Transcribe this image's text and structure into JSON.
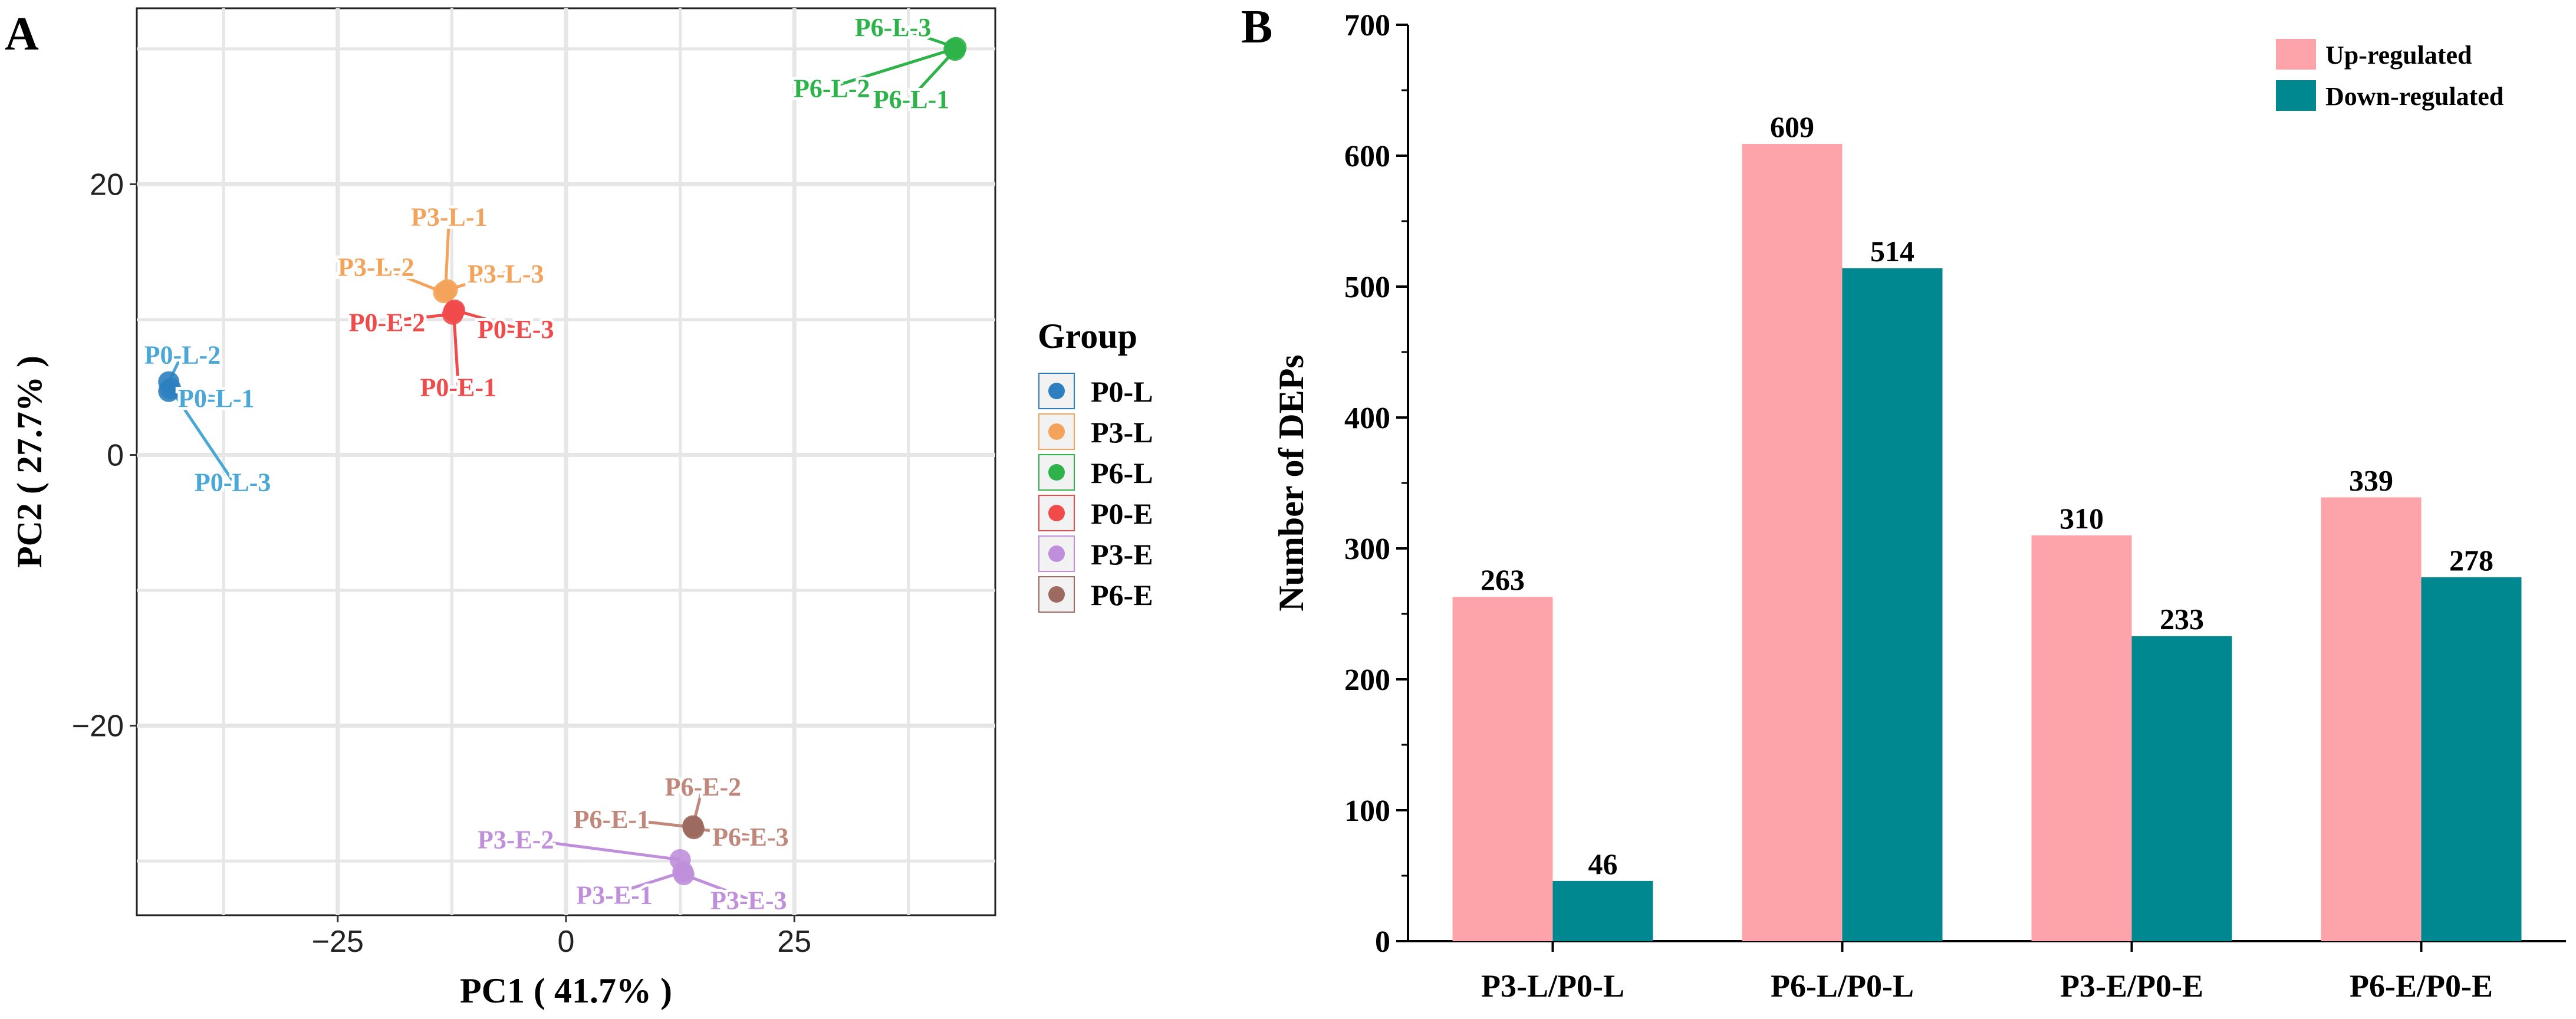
{
  "chart_data": [
    {
      "panel": "A",
      "type": "scatter",
      "xlabel": "PC1 ( 41.7% )",
      "ylabel": "PC2 ( 27.7% )",
      "xlim": [
        -47,
        47
      ],
      "ylim": [
        -34,
        33
      ],
      "xticks": [
        -25,
        0,
        25
      ],
      "yticks": [
        -20,
        0,
        20
      ],
      "xtick_labels": [
        "−25",
        "0",
        "25"
      ],
      "ytick_labels": [
        "−20",
        "0",
        "20"
      ],
      "grid": true,
      "legend": {
        "title": "Group",
        "entries": [
          {
            "name": "P0-L",
            "color": "#2e7fbf"
          },
          {
            "name": "P3-L",
            "color": "#f4a35a"
          },
          {
            "name": "P6-L",
            "color": "#2db34a"
          },
          {
            "name": "P0-E",
            "color": "#f04a4a"
          },
          {
            "name": "P3-E",
            "color": "#c08fdc"
          },
          {
            "name": "P6-E",
            "color": "#9c6a5e"
          }
        ]
      },
      "series": [
        {
          "name": "P0-L",
          "color": "#2e7fbf",
          "label_color": "#4aa8d8",
          "points": [
            {
              "label": "P0-L-1",
              "x": -43.5,
              "y": 4.7,
              "lx": -38.3,
              "ly": 4.2
            },
            {
              "label": "P0-L-2",
              "x": -43.5,
              "y": 5.4,
              "lx": -42.0,
              "ly": 7.4
            },
            {
              "label": "P0-L-3",
              "x": -43.3,
              "y": 4.9,
              "lx": -36.5,
              "ly": -2.0
            }
          ]
        },
        {
          "name": "P3-L",
          "color": "#f4a35a",
          "label_color": "#f4a35a",
          "points": [
            {
              "label": "P3-L-1",
              "x": -13.2,
              "y": 12.1,
              "lx": -12.8,
              "ly": 17.6
            },
            {
              "label": "P3-L-2",
              "x": -13.4,
              "y": 12.0,
              "lx": -20.8,
              "ly": 13.9
            },
            {
              "label": "P3-L-3",
              "x": -13.0,
              "y": 12.2,
              "lx": -6.6,
              "ly": 13.4
            }
          ]
        },
        {
          "name": "P6-L",
          "color": "#2db34a",
          "label_color": "#2db34a",
          "points": [
            {
              "label": "P6-L-1",
              "x": 42.6,
              "y": 29.9,
              "lx": 37.8,
              "ly": 26.3
            },
            {
              "label": "P6-L-2",
              "x": 42.5,
              "y": 30.0,
              "lx": 29.1,
              "ly": 27.1
            },
            {
              "label": "P6-L-3",
              "x": 42.7,
              "y": 30.1,
              "lx": 35.8,
              "ly": 31.6
            }
          ]
        },
        {
          "name": "P0-E",
          "color": "#f04a4a",
          "label_color": "#f04a4a",
          "points": [
            {
              "label": "P0-E-1",
              "x": -12.3,
              "y": 10.6,
              "lx": -11.8,
              "ly": 5.0
            },
            {
              "label": "P0-E-2",
              "x": -12.4,
              "y": 10.4,
              "lx": -19.6,
              "ly": 9.8
            },
            {
              "label": "P0-E-3",
              "x": -12.2,
              "y": 10.7,
              "lx": -5.5,
              "ly": 9.3
            }
          ]
        },
        {
          "name": "P3-E",
          "color": "#c08fdc",
          "label_color": "#c08fdc",
          "points": [
            {
              "label": "P3-E-1",
              "x": 12.8,
              "y": -30.8,
              "lx": 5.3,
              "ly": -32.5
            },
            {
              "label": "P3-E-2",
              "x": 12.5,
              "y": -29.9,
              "lx": -5.5,
              "ly": -28.4
            },
            {
              "label": "P3-E-3",
              "x": 12.9,
              "y": -31.0,
              "lx": 20.0,
              "ly": -32.9
            }
          ]
        },
        {
          "name": "P6-E",
          "color": "#9c6a5e",
          "label_color": "#c0877a",
          "points": [
            {
              "label": "P6-E-1",
              "x": 13.9,
              "y": -27.5,
              "lx": 5.0,
              "ly": -26.9
            },
            {
              "label": "P6-E-2",
              "x": 13.9,
              "y": -27.4,
              "lx": 15.0,
              "ly": -24.5
            },
            {
              "label": "P6-E-3",
              "x": 14.0,
              "y": -27.6,
              "lx": 20.2,
              "ly": -28.2
            }
          ]
        }
      ]
    },
    {
      "panel": "B",
      "type": "bar",
      "xlabel": "",
      "ylabel": "Number of DEPs",
      "ylim": [
        0,
        700
      ],
      "yticks": [
        0,
        100,
        200,
        300,
        400,
        500,
        600,
        700
      ],
      "categories": [
        "P3-L/P0-L",
        "P6-L/P0-L",
        "P3-E/P0-E",
        "P6-E/P0-E"
      ],
      "series": [
        {
          "name": "Up-regulated",
          "color": "#fda4aa",
          "values": [
            263,
            609,
            310,
            339
          ]
        },
        {
          "name": "Down-regulated",
          "color": "#008891",
          "values": [
            46,
            514,
            233,
            278
          ]
        }
      ],
      "legend_position": "top-right"
    }
  ]
}
